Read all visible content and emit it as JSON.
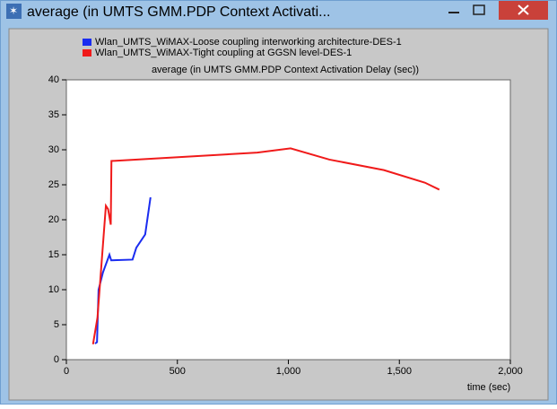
{
  "window": {
    "title": "average (in UMTS GMM.PDP Context Activati..."
  },
  "chart_data": {
    "type": "line",
    "title": "average (in UMTS GMM.PDP Context Activation Delay (sec))",
    "xlabel": "time (sec)",
    "xlim": [
      0,
      2000
    ],
    "xticks": [
      0,
      500,
      {
        "value": 1000,
        "label": "1,000"
      },
      {
        "value": 1500,
        "label": "1,500"
      },
      {
        "value": 2000,
        "label": "2,000"
      }
    ],
    "ylim": [
      0,
      40
    ],
    "yticks": [
      0,
      5,
      10,
      15,
      20,
      25,
      30,
      35,
      40
    ],
    "series": [
      {
        "name": "Wlan_UMTS_WiMAX-Loose coupling interworking architecture-DES-1",
        "color": "#1a2cf0",
        "x": [
          129,
          138,
          145,
          165,
          194,
          202,
          298,
          315,
          355,
          379
        ],
        "values": [
          2.3,
          2.5,
          10,
          12.5,
          15,
          14.2,
          14.3,
          16,
          17.9,
          23.2
        ]
      },
      {
        "name": "Wlan_UMTS_WiMAX-Tight coupling at GGSN level-DES-1",
        "color": "#f01a1a",
        "x": [
          120,
          140,
          178,
          188,
          200,
          203,
          860,
          1010,
          1185,
          1430,
          1615,
          1680
        ],
        "values": [
          2.2,
          6,
          22,
          21.5,
          19.3,
          28.4,
          29.6,
          30.2,
          28.6,
          27.1,
          25.3,
          24.3
        ]
      }
    ]
  }
}
